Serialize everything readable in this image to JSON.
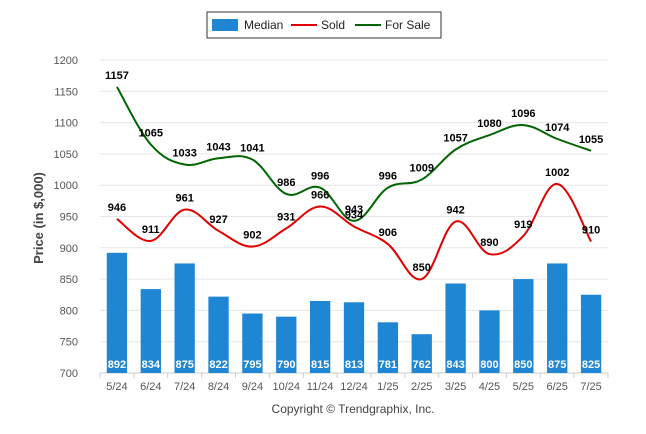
{
  "chart_data": {
    "type": "bar",
    "categories": [
      "5/24",
      "6/24",
      "7/24",
      "8/24",
      "9/24",
      "10/24",
      "11/24",
      "12/24",
      "1/25",
      "2/25",
      "3/25",
      "4/25",
      "5/25",
      "6/25",
      "7/25"
    ],
    "series": [
      {
        "name": "Median",
        "type": "bar",
        "color": "#1f86d4",
        "values": [
          892,
          834,
          875,
          822,
          795,
          790,
          815,
          813,
          781,
          762,
          843,
          800,
          850,
          875,
          825
        ]
      },
      {
        "name": "Sold",
        "type": "line",
        "color": "#e00000",
        "values": [
          946,
          911,
          961,
          927,
          902,
          931,
          966,
          934,
          906,
          850,
          942,
          890,
          919,
          1002,
          910
        ]
      },
      {
        "name": "For Sale",
        "type": "line",
        "color": "#006600",
        "values": [
          1157,
          1065,
          1033,
          1043,
          1041,
          986,
          996,
          943,
          996,
          1009,
          1057,
          1080,
          1096,
          1074,
          1055
        ]
      }
    ],
    "ylabel": "Price (in $,000)",
    "ylim": [
      700,
      1200
    ],
    "yticks": [
      700,
      750,
      800,
      850,
      900,
      950,
      1000,
      1050,
      1100,
      1150,
      1200
    ],
    "grid": true,
    "legend_position": "top-center",
    "copyright": "Copyright © Trendgraphix, Inc."
  }
}
